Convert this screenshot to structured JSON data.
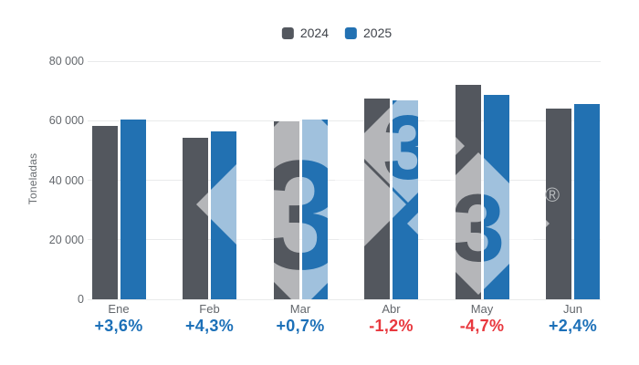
{
  "chart_data": {
    "type": "bar",
    "title": "",
    "categories": [
      "Ene",
      "Feb",
      "Mar",
      "Abr",
      "May",
      "Jun"
    ],
    "series": [
      {
        "name": "2024",
        "color": "#53575e",
        "values": [
          58200,
          54100,
          59900,
          67500,
          72100,
          64100
        ]
      },
      {
        "name": "2025",
        "color": "#2271b2",
        "values": [
          60300,
          56400,
          60300,
          66700,
          68700,
          65600
        ]
      }
    ],
    "variations": [
      {
        "text": "+3,6%",
        "color": "#1c70b8"
      },
      {
        "text": "+4,3%",
        "color": "#1c70b8"
      },
      {
        "text": "+0,7%",
        "color": "#1c70b8"
      },
      {
        "text": "-1,2%",
        "color": "#e8383e"
      },
      {
        "text": "-4,7%",
        "color": "#e8383e"
      },
      {
        "text": "+2,4%",
        "color": "#1c70b8"
      }
    ],
    "ylabel": "Toneladas",
    "ylim": [
      0,
      80000
    ],
    "y_ticks": [
      {
        "label": "80 000",
        "value": 80000
      },
      {
        "label": "60 000",
        "value": 60000
      },
      {
        "label": "40 000",
        "value": 40000
      },
      {
        "label": "20 000",
        "value": 20000
      },
      {
        "label": "0",
        "value": 0
      }
    ],
    "grid": true,
    "legend_position": "top"
  },
  "legend": {
    "items": [
      {
        "label": "2024",
        "color": "#53575e"
      },
      {
        "label": "2025",
        "color": "#2271b2"
      }
    ]
  },
  "watermark": {
    "digits": [
      "3",
      "3",
      "3"
    ],
    "registered": "®"
  }
}
